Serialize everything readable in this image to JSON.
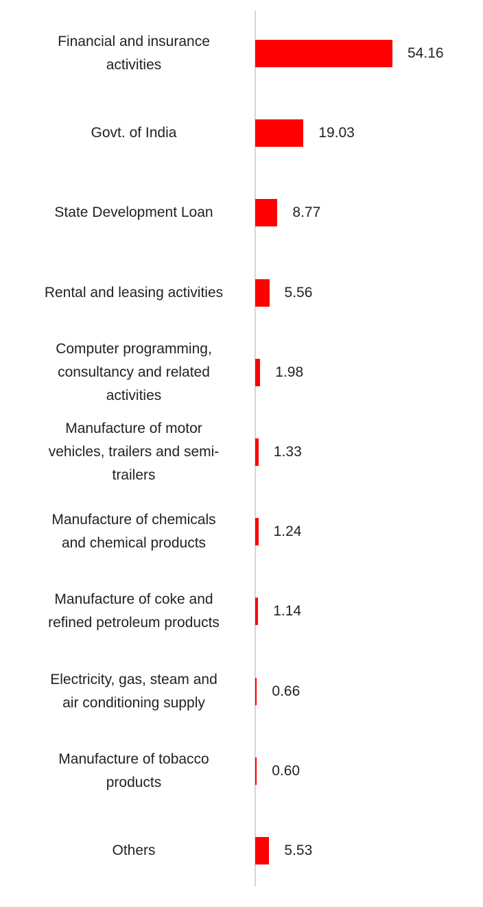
{
  "chart_data": {
    "type": "bar",
    "orientation": "horizontal",
    "color": "#ff0000",
    "categories": [
      "Financial and insurance\nactivities",
      "Govt. of India",
      "State Development Loan",
      "Rental and leasing activities",
      "Computer programming,\nconsultancy and related\nactivities",
      "Manufacture of motor\nvehicles, trailers and semi-\ntrailers",
      "Manufacture of chemicals\nand chemical products",
      "Manufacture of coke and\nrefined petroleum products",
      "Electricity, gas, steam and\nair conditioning supply",
      "Manufacture of tobacco\nproducts",
      "Others"
    ],
    "values": [
      54.16,
      19.03,
      8.77,
      5.56,
      1.98,
      1.33,
      1.24,
      1.14,
      0.66,
      0.6,
      5.53
    ],
    "value_labels": [
      "54.16",
      "19.03",
      "8.77",
      "5.56",
      "1.98",
      "1.33",
      "1.24",
      "1.14",
      "0.66",
      "0.60",
      "5.53"
    ]
  }
}
